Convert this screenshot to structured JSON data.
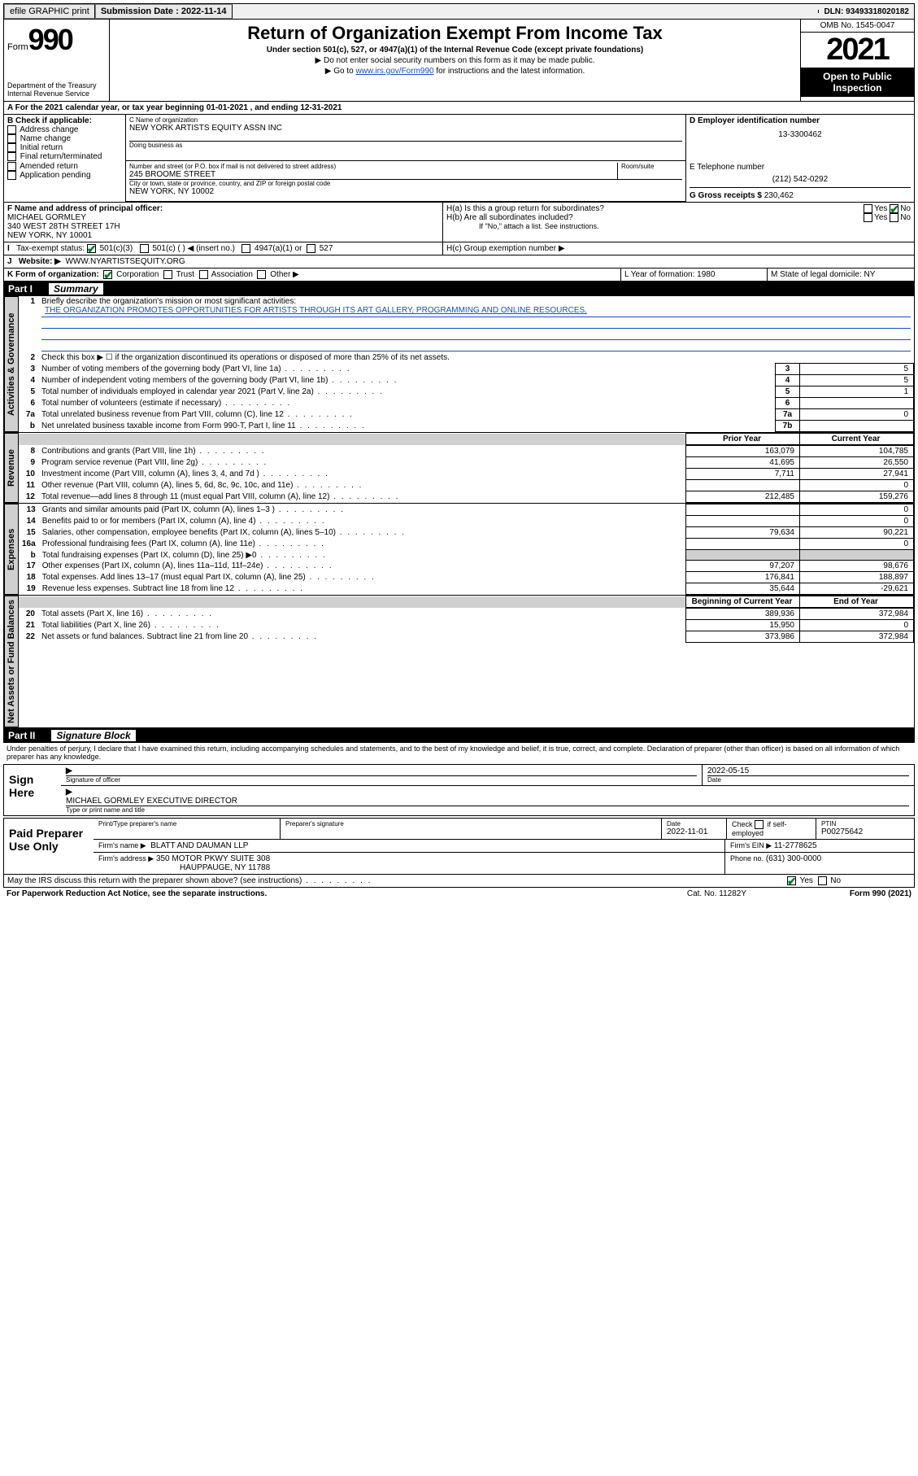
{
  "topbar": {
    "efile": "efile GRAPHIC print",
    "subdate_lbl": "Submission Date : 2022-11-14",
    "dln_lbl": "DLN: 93493318020182"
  },
  "header": {
    "form_word": "Form",
    "form_num": "990",
    "dept": "Department of the Treasury Internal Revenue Service",
    "title": "Return of Organization Exempt From Income Tax",
    "sub": "Under section 501(c), 527, or 4947(a)(1) of the Internal Revenue Code (except private foundations)",
    "note1": "▶ Do not enter social security numbers on this form as it may be made public.",
    "note2_pre": "▶ Go to ",
    "note2_link": "www.irs.gov/Form990",
    "note2_post": " for instructions and the latest information.",
    "omb": "OMB No. 1545-0047",
    "year": "2021",
    "openpub": "Open to Public Inspection"
  },
  "A": {
    "text": "For the 2021 calendar year, or tax year beginning 01-01-2021    , and ending 12-31-2021"
  },
  "B": {
    "label": "B Check if applicable:",
    "items": [
      "Address change",
      "Name change",
      "Initial return",
      "Final return/terminated",
      "Amended return",
      "Application pending"
    ]
  },
  "C": {
    "name_lbl": "C Name of organization",
    "name": "NEW YORK ARTISTS EQUITY ASSN INC",
    "dba_lbl": "Doing business as",
    "addr_lbl": "Number and street (or P.O. box if mail is not delivered to street address)",
    "room_lbl": "Room/suite",
    "addr": "245 BROOME STREET",
    "city_lbl": "City or town, state or province, country, and ZIP or foreign postal code",
    "city": "NEW YORK, NY  10002"
  },
  "D": {
    "lbl": "D Employer identification number",
    "val": "13-3300462"
  },
  "E": {
    "lbl": "E Telephone number",
    "val": "(212) 542-0292"
  },
  "G": {
    "lbl": "G Gross receipts $",
    "val": "230,462"
  },
  "F": {
    "lbl": "F Name and address of principal officer:",
    "name": "MICHAEL GORMLEY",
    "addr1": "340 WEST 28TH STREET 17H",
    "addr2": "NEW YORK, NY  10001"
  },
  "H": {
    "a": "H(a)  Is this a group return for subordinates?",
    "b": "H(b)  Are all subordinates included?",
    "b_note": "If \"No,\" attach a list. See instructions.",
    "c": "H(c)  Group exemption number ▶",
    "yes": "Yes",
    "no": "No"
  },
  "I": {
    "lbl": "Tax-exempt status:",
    "opts": [
      "501(c)(3)",
      "501(c) (  ) ◀ (insert no.)",
      "4947(a)(1) or",
      "527"
    ]
  },
  "J": {
    "lbl": "Website: ▶",
    "val": "WWW.NYARTISTSEQUITY.ORG"
  },
  "K": {
    "lbl": "K Form of organization:",
    "opts": [
      "Corporation",
      "Trust",
      "Association",
      "Other ▶"
    ]
  },
  "L": {
    "lbl": "L Year of formation: 1980"
  },
  "M": {
    "lbl": "M State of legal domicile: NY"
  },
  "part1": {
    "label": "Part I",
    "title": "Summary"
  },
  "mission": {
    "q": "Briefly describe the organization's mission or most significant activities:",
    "text": "THE ORGANIZATION PROMOTES OPPORTUNITIES FOR ARTISTS THROUGH ITS ART GALLERY, PROGRAMMING AND ONLINE RESOURCES."
  },
  "line2": "Check this box ▶ ☐  if the organization discontinued its operations or disposed of more than 25% of its net assets.",
  "gov_lines": [
    {
      "n": "3",
      "t": "Number of voting members of the governing body (Part VI, line 1a)",
      "b": "3",
      "v": "5"
    },
    {
      "n": "4",
      "t": "Number of independent voting members of the governing body (Part VI, line 1b)",
      "b": "4",
      "v": "5"
    },
    {
      "n": "5",
      "t": "Total number of individuals employed in calendar year 2021 (Part V, line 2a)",
      "b": "5",
      "v": "1"
    },
    {
      "n": "6",
      "t": "Total number of volunteers (estimate if necessary)",
      "b": "6",
      "v": ""
    },
    {
      "n": "7a",
      "t": "Total unrelated business revenue from Part VIII, column (C), line 12",
      "b": "7a",
      "v": "0"
    },
    {
      "n": "b",
      "t": "Net unrelated business taxable income from Form 990-T, Part I, line 11",
      "b": "7b",
      "v": ""
    }
  ],
  "cols": {
    "prior": "Prior Year",
    "current": "Current Year"
  },
  "rev_lines": [
    {
      "n": "8",
      "t": "Contributions and grants (Part VIII, line 1h)",
      "p": "163,079",
      "c": "104,785"
    },
    {
      "n": "9",
      "t": "Program service revenue (Part VIII, line 2g)",
      "p": "41,695",
      "c": "26,550"
    },
    {
      "n": "10",
      "t": "Investment income (Part VIII, column (A), lines 3, 4, and 7d )",
      "p": "7,711",
      "c": "27,941"
    },
    {
      "n": "11",
      "t": "Other revenue (Part VIII, column (A), lines 5, 6d, 8c, 9c, 10c, and 11e)",
      "p": "",
      "c": "0"
    },
    {
      "n": "12",
      "t": "Total revenue—add lines 8 through 11 (must equal Part VIII, column (A), line 12)",
      "p": "212,485",
      "c": "159,276"
    }
  ],
  "exp_lines": [
    {
      "n": "13",
      "t": "Grants and similar amounts paid (Part IX, column (A), lines 1–3 )",
      "p": "",
      "c": "0"
    },
    {
      "n": "14",
      "t": "Benefits paid to or for members (Part IX, column (A), line 4)",
      "p": "",
      "c": "0"
    },
    {
      "n": "15",
      "t": "Salaries, other compensation, employee benefits (Part IX, column (A), lines 5–10)",
      "p": "79,634",
      "c": "90,221"
    },
    {
      "n": "16a",
      "t": "Professional fundraising fees (Part IX, column (A), line 11e)",
      "p": "",
      "c": "0"
    },
    {
      "n": "b",
      "t": "Total fundraising expenses (Part IX, column (D), line 25) ▶0",
      "p": "grey",
      "c": "grey"
    },
    {
      "n": "17",
      "t": "Other expenses (Part IX, column (A), lines 11a–11d, 11f–24e)",
      "p": "97,207",
      "c": "98,676"
    },
    {
      "n": "18",
      "t": "Total expenses. Add lines 13–17 (must equal Part IX, column (A), line 25)",
      "p": "176,841",
      "c": "188,897"
    },
    {
      "n": "19",
      "t": "Revenue less expenses. Subtract line 18 from line 12",
      "p": "35,644",
      "c": "-29,621"
    }
  ],
  "na_cols": {
    "beg": "Beginning of Current Year",
    "end": "End of Year"
  },
  "na_lines": [
    {
      "n": "20",
      "t": "Total assets (Part X, line 16)",
      "p": "389,936",
      "c": "372,984"
    },
    {
      "n": "21",
      "t": "Total liabilities (Part X, line 26)",
      "p": "15,950",
      "c": "0"
    },
    {
      "n": "22",
      "t": "Net assets or fund balances. Subtract line 21 from line 20",
      "p": "373,986",
      "c": "372,984"
    }
  ],
  "part2": {
    "label": "Part II",
    "title": "Signature Block"
  },
  "penalty": "Under penalties of perjury, I declare that I have examined this return, including accompanying schedules and statements, and to the best of my knowledge and belief, it is true, correct, and complete. Declaration of preparer (other than officer) is based on all information of which preparer has any knowledge.",
  "sign": {
    "here": "Sign Here",
    "sig_lbl": "Signature of officer",
    "date": "2022-05-15",
    "date_lbl": "Date",
    "name": "MICHAEL GORMLEY  EXECUTIVE DIRECTOR",
    "name_lbl": "Type or print name and title"
  },
  "paid": {
    "title": "Paid Preparer Use Only",
    "h1": "Print/Type preparer's name",
    "h2": "Preparer's signature",
    "h3": "Date",
    "date": "2022-11-01",
    "h4_pre": "Check",
    "h4_post": "if self-employed",
    "h5": "PTIN",
    "ptin": "P00275642",
    "firm_lbl": "Firm's name     ▶",
    "firm": "BLATT AND DAUMAN LLP",
    "ein_lbl": "Firm's EIN ▶",
    "ein": "11-2778625",
    "addr_lbl": "Firm's address ▶",
    "addr1": "350 MOTOR PKWY SUITE 308",
    "addr2": "HAUPPAUGE, NY  11788",
    "phone_lbl": "Phone no.",
    "phone": "(631) 300-0000"
  },
  "discuss": "May the IRS discuss this return with the preparer shown above? (see instructions)",
  "footer": {
    "left": "For Paperwork Reduction Act Notice, see the separate instructions.",
    "mid": "Cat. No. 11282Y",
    "right": "Form 990 (2021)"
  },
  "tabs": {
    "gov": "Activities & Governance",
    "rev": "Revenue",
    "exp": "Expenses",
    "na": "Net Assets or Fund Balances"
  }
}
